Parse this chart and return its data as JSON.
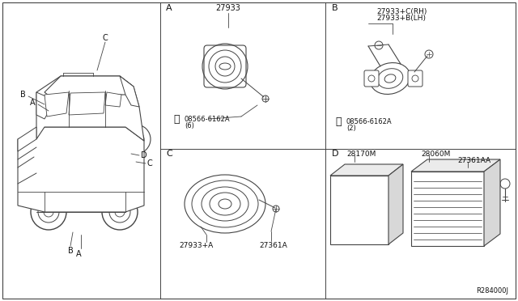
{
  "background_color": "#ffffff",
  "line_color": "#444444",
  "text_color": "#111111",
  "figsize": [
    6.4,
    3.72
  ],
  "dpi": 100,
  "labels": {
    "A": "27933",
    "A_screw": "08566-6162A",
    "A_screw2": "(6)",
    "B1": "27933+C(RH)",
    "B2": "27933+B(LH)",
    "B_screw": "08566-6162A",
    "B_screw2": "(2)",
    "C1": "27933+A",
    "C2": "27361A",
    "D": "28170M",
    "E1": "28060M",
    "E2": "27361AA",
    "ref": "R284000J",
    "sec_A": "A",
    "sec_B": "B",
    "sec_C": "C",
    "sec_D": "D"
  }
}
